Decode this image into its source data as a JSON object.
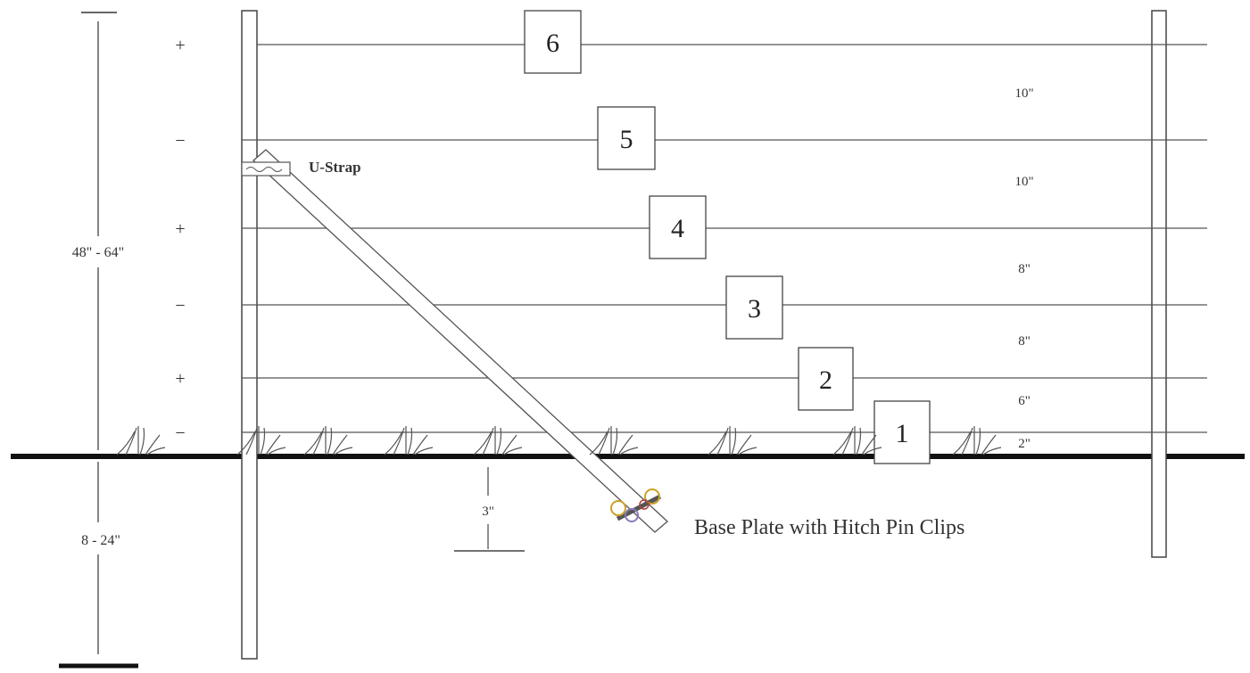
{
  "wires": [
    {
      "number": "6",
      "polarity": "+"
    },
    {
      "number": "5",
      "polarity": "−"
    },
    {
      "number": "4",
      "polarity": "+"
    },
    {
      "number": "3",
      "polarity": "−"
    },
    {
      "number": "2",
      "polarity": "+"
    },
    {
      "number": "1",
      "polarity": "−"
    }
  ],
  "spacings": [
    "10\"",
    "10\"",
    "8\"",
    "8\"",
    "6\"",
    "2\""
  ],
  "dimensions": {
    "height_above_ground": "48\" - 64\"",
    "depth_below_ground": "8 - 24\"",
    "base_plate_depth": "3\""
  },
  "labels": {
    "u_strap": "U-Strap",
    "base_plate": "Base Plate with Hitch Pin Clips"
  }
}
